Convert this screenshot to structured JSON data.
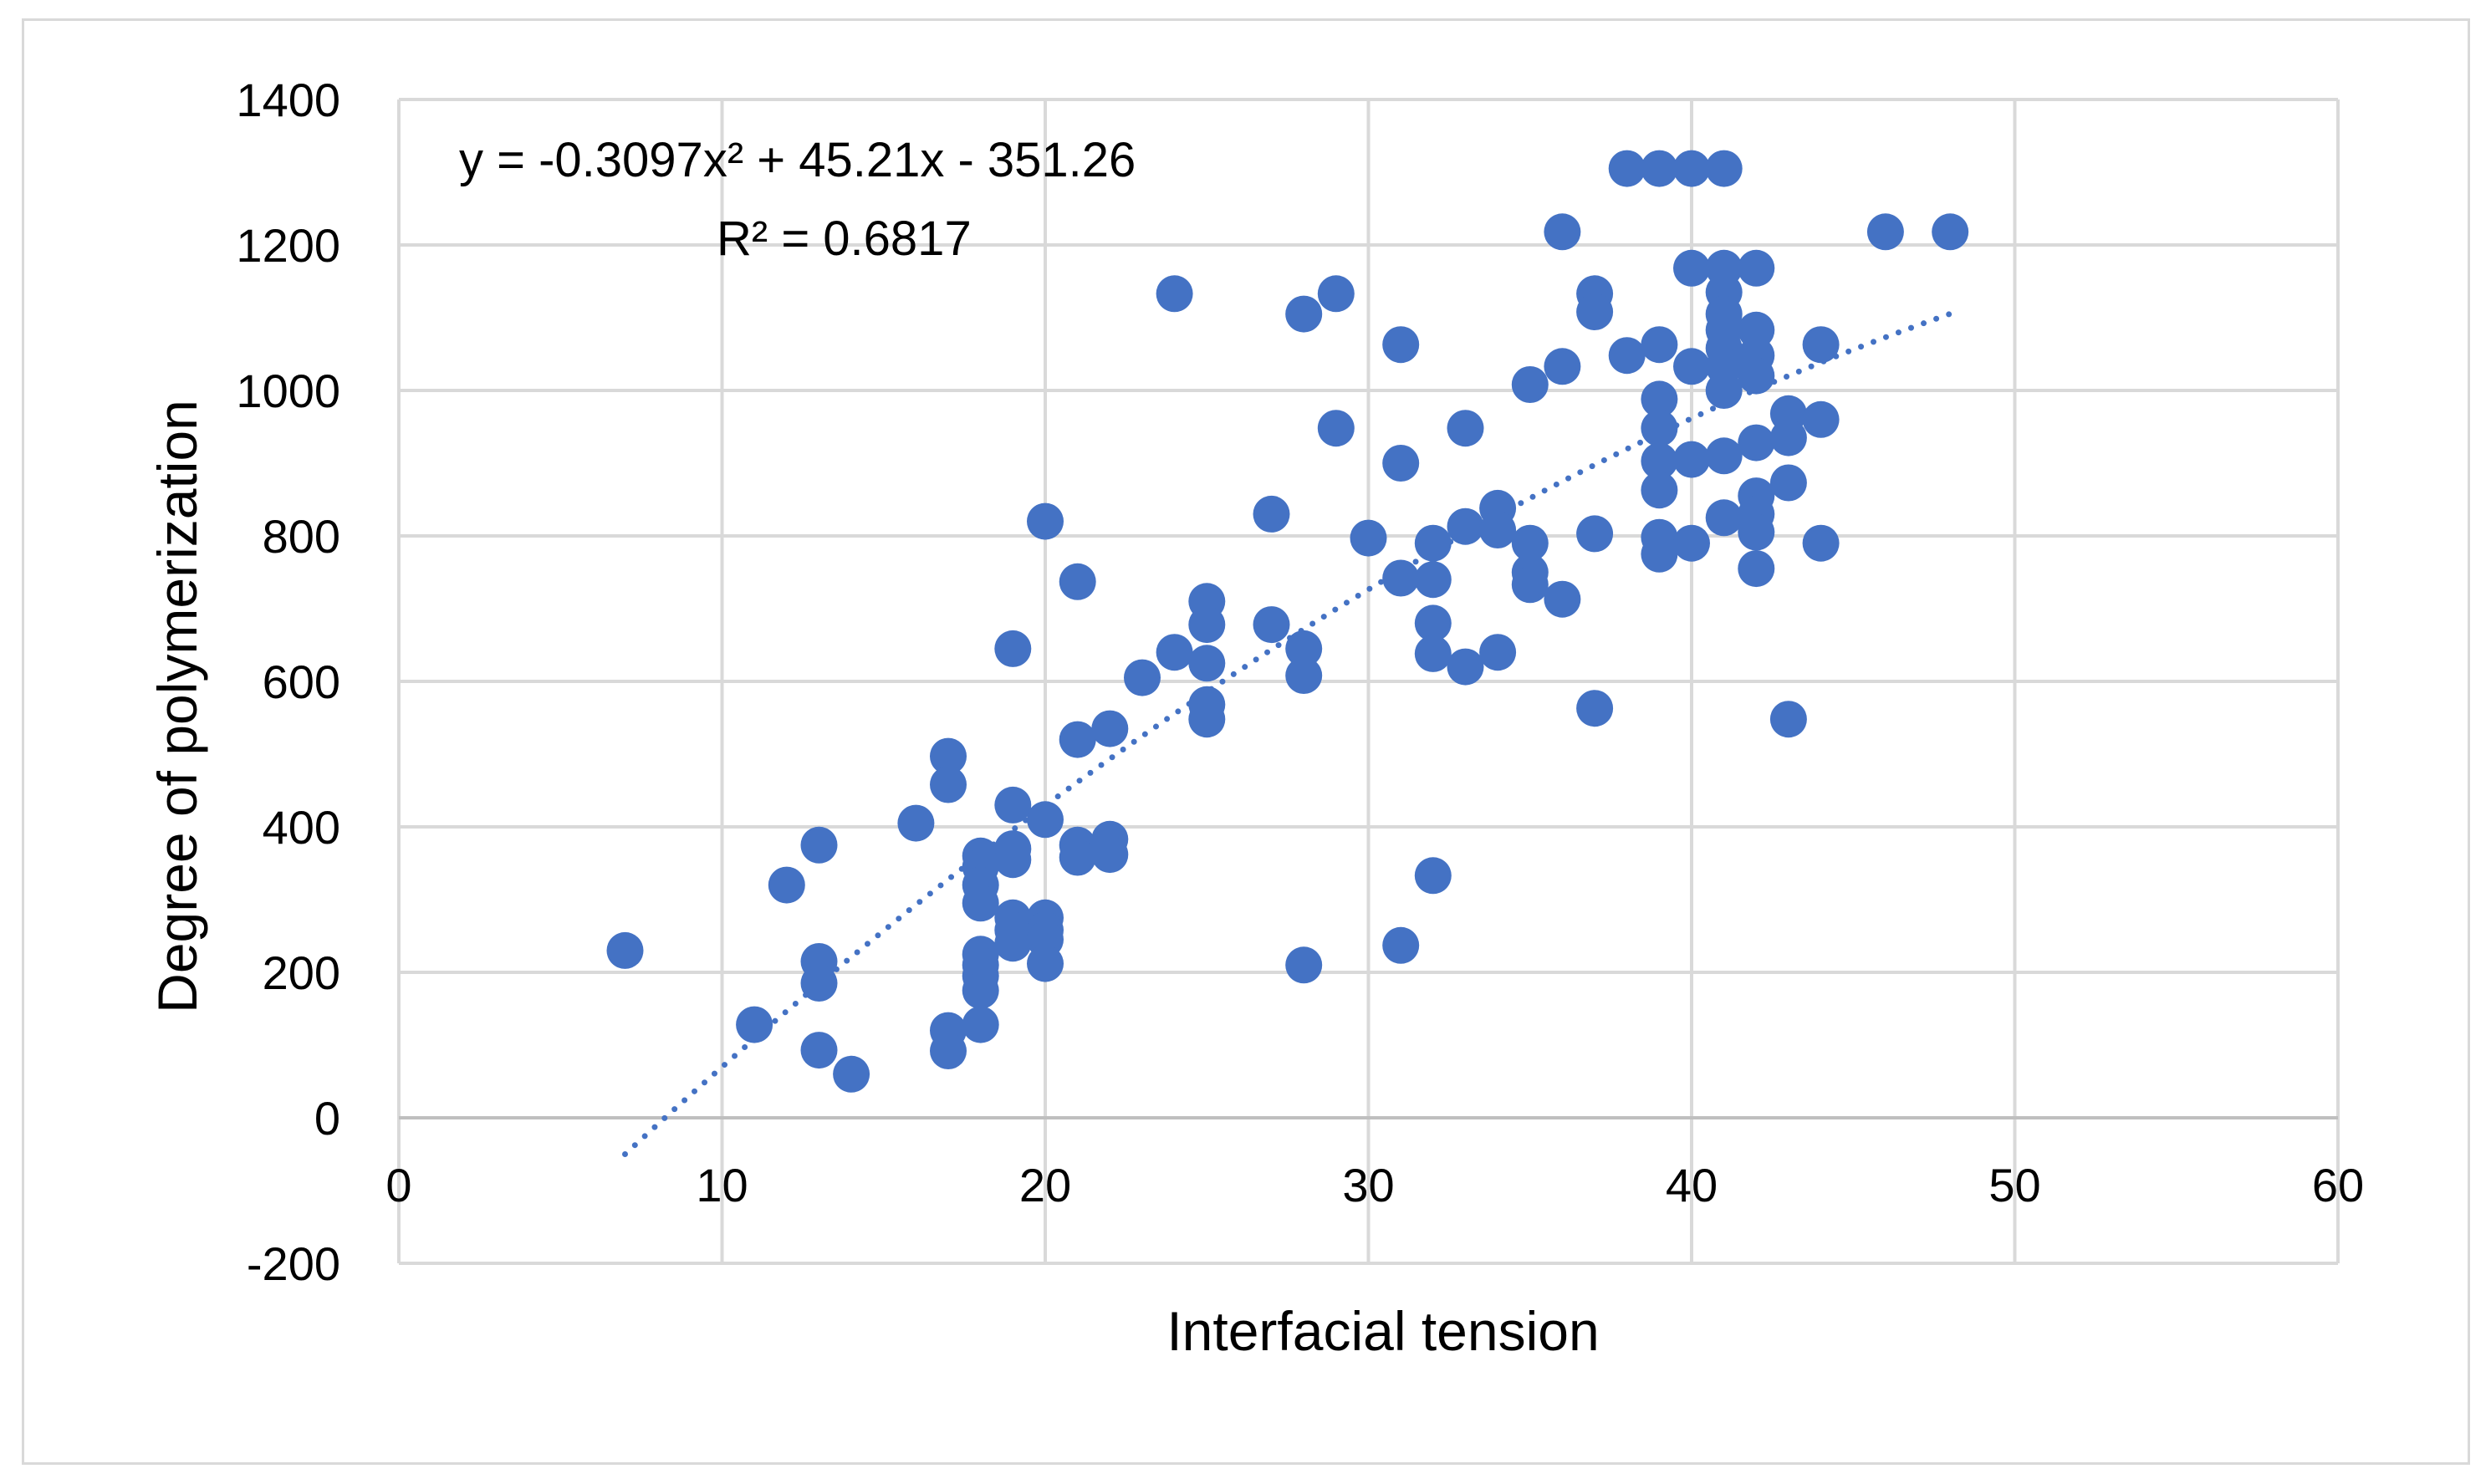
{
  "chart_data": {
    "type": "scatter",
    "title": "",
    "xlabel": "Interfacial tension",
    "ylabel": "Degree of polymerization",
    "xlim": [
      0,
      60
    ],
    "ylim": [
      -200,
      1400
    ],
    "x_ticks": [
      "0",
      "10",
      "20",
      "30",
      "40",
      "50",
      "60"
    ],
    "y_ticks": [
      "-200",
      "0",
      "200",
      "400",
      "600",
      "800",
      "1000",
      "1200",
      "1400"
    ],
    "grid": true,
    "legend": "none",
    "point_color": "#4472c4",
    "trendline": {
      "type": "polynomial",
      "order": 2,
      "style": "dotted",
      "color": "#4472c4",
      "coefficients": [
        -0.3097,
        45.21,
        -351.26
      ],
      "x_range": [
        7,
        48
      ],
      "equation_label": "y = -0.3097x² + 45.21x - 351.26",
      "r2_label": "R² = 0.6817"
    },
    "series": [
      {
        "points": [
          [
            7,
            230
          ],
          [
            11,
            128
          ],
          [
            12,
            320
          ],
          [
            13,
            375
          ],
          [
            13,
            215
          ],
          [
            13,
            185
          ],
          [
            13,
            93
          ],
          [
            14,
            60
          ],
          [
            16,
            405
          ],
          [
            17,
            497
          ],
          [
            17,
            458
          ],
          [
            17,
            120
          ],
          [
            17,
            92
          ],
          [
            18,
            360
          ],
          [
            18,
            345
          ],
          [
            18,
            320
          ],
          [
            18,
            295
          ],
          [
            18,
            225
          ],
          [
            18,
            210
          ],
          [
            18,
            195
          ],
          [
            18,
            175
          ],
          [
            18,
            128
          ],
          [
            19,
            645
          ],
          [
            19,
            430
          ],
          [
            19,
            370
          ],
          [
            19,
            355
          ],
          [
            19,
            275
          ],
          [
            19,
            258
          ],
          [
            19,
            240
          ],
          [
            20,
            820
          ],
          [
            20,
            410
          ],
          [
            20,
            275
          ],
          [
            20,
            258
          ],
          [
            20,
            245
          ],
          [
            20,
            212
          ],
          [
            21,
            737
          ],
          [
            21,
            520
          ],
          [
            21,
            375
          ],
          [
            21,
            358
          ],
          [
            22,
            535
          ],
          [
            22,
            383
          ],
          [
            22,
            362
          ],
          [
            23,
            605
          ],
          [
            24,
            1133
          ],
          [
            24,
            640
          ],
          [
            25,
            710
          ],
          [
            25,
            678
          ],
          [
            25,
            625
          ],
          [
            25,
            568
          ],
          [
            25,
            548
          ],
          [
            27,
            830
          ],
          [
            27,
            678
          ],
          [
            28,
            1105
          ],
          [
            28,
            645
          ],
          [
            28,
            608
          ],
          [
            28,
            210
          ],
          [
            29,
            1133
          ],
          [
            29,
            948
          ],
          [
            30,
            797
          ],
          [
            31,
            1063
          ],
          [
            31,
            900
          ],
          [
            31,
            742
          ],
          [
            31,
            237
          ],
          [
            32,
            790
          ],
          [
            32,
            740
          ],
          [
            32,
            680
          ],
          [
            32,
            638
          ],
          [
            32,
            333
          ],
          [
            33,
            948
          ],
          [
            33,
            813
          ],
          [
            33,
            620
          ],
          [
            34,
            838
          ],
          [
            34,
            808
          ],
          [
            34,
            640
          ],
          [
            35,
            1008
          ],
          [
            35,
            790
          ],
          [
            35,
            750
          ],
          [
            35,
            733
          ],
          [
            36,
            1218
          ],
          [
            36,
            1033
          ],
          [
            36,
            713
          ],
          [
            37,
            1133
          ],
          [
            37,
            1108
          ],
          [
            37,
            803
          ],
          [
            37,
            563
          ],
          [
            38,
            1305
          ],
          [
            38,
            1048
          ],
          [
            39,
            1305
          ],
          [
            39,
            1063
          ],
          [
            39,
            988
          ],
          [
            39,
            948
          ],
          [
            39,
            903
          ],
          [
            39,
            863
          ],
          [
            39,
            798
          ],
          [
            39,
            775
          ],
          [
            40,
            1305
          ],
          [
            40,
            1168
          ],
          [
            40,
            1033
          ],
          [
            40,
            905
          ],
          [
            40,
            790
          ],
          [
            41,
            1305
          ],
          [
            41,
            1168
          ],
          [
            41,
            1135
          ],
          [
            41,
            1105
          ],
          [
            41,
            1083
          ],
          [
            41,
            1058
          ],
          [
            41,
            1033
          ],
          [
            41,
            1000
          ],
          [
            41,
            910
          ],
          [
            41,
            825
          ],
          [
            42,
            1168
          ],
          [
            42,
            1083
          ],
          [
            42,
            1048
          ],
          [
            42,
            1020
          ],
          [
            42,
            928
          ],
          [
            42,
            855
          ],
          [
            42,
            830
          ],
          [
            42,
            805
          ],
          [
            42,
            755
          ],
          [
            43,
            968
          ],
          [
            43,
            935
          ],
          [
            43,
            873
          ],
          [
            43,
            548
          ],
          [
            44,
            1063
          ],
          [
            44,
            960
          ],
          [
            44,
            790
          ],
          [
            46,
            1218
          ],
          [
            48,
            1218
          ]
        ]
      }
    ]
  }
}
